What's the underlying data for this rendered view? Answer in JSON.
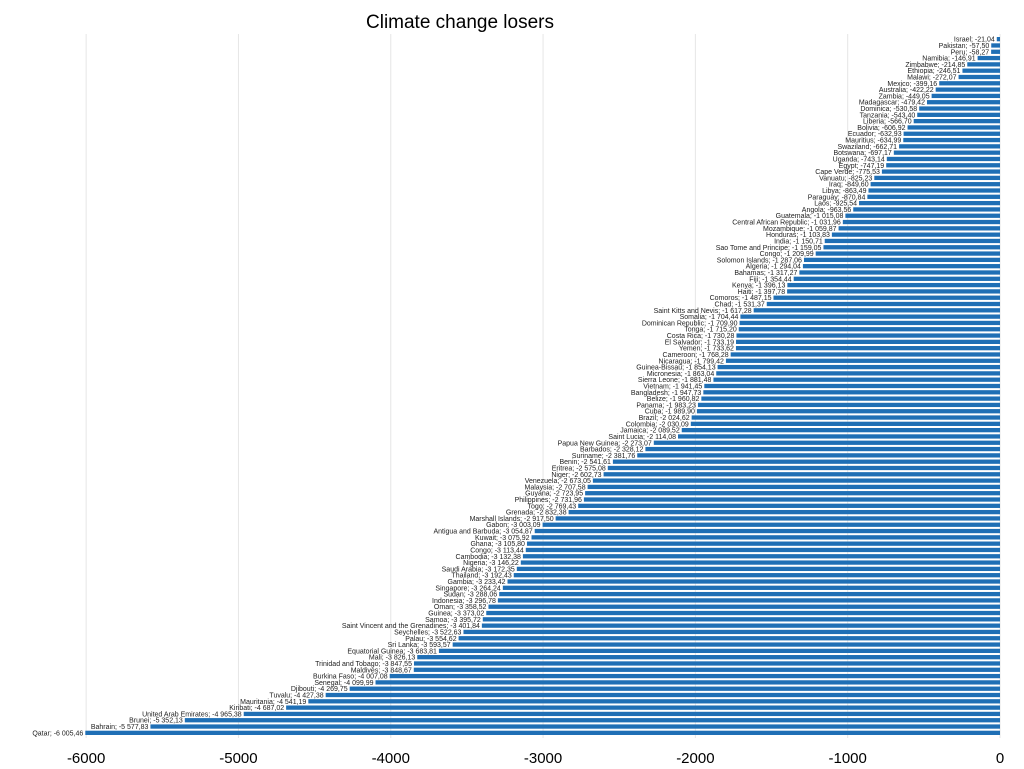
{
  "chart_data": {
    "type": "bar",
    "orientation": "horizontal",
    "title": "Climate change losers",
    "xlim": [
      -6000,
      0
    ],
    "xticks": [
      -6000,
      -5000,
      -4000,
      -3000,
      -2000,
      -1000,
      0
    ],
    "xtick_labels": [
      "-6000",
      "-5000",
      "-4000",
      "-3000",
      "-2000",
      "-1000",
      "0"
    ],
    "grid": true,
    "bar_color": "#1f6fb5",
    "bars": [
      {
        "label": "Israel; -21,04",
        "value": -21.04
      },
      {
        "label": "Pakistan; -57,50",
        "value": -57.5
      },
      {
        "label": "Peru; -58,27",
        "value": -58.27
      },
      {
        "label": "Namibia; -146,91",
        "value": -146.91
      },
      {
        "label": "Zimbabwe; -214,85",
        "value": -214.85
      },
      {
        "label": "Ethiopia; -246,51",
        "value": -246.51
      },
      {
        "label": "Malawi; -272,07",
        "value": -272.07
      },
      {
        "label": "Mexico; -399,16",
        "value": -399.16
      },
      {
        "label": "Australia; -422,22",
        "value": -422.22
      },
      {
        "label": "Zambia; -449,05",
        "value": -449.05
      },
      {
        "label": "Madagascar; -479,42",
        "value": -479.42
      },
      {
        "label": "Dominica; -530,58",
        "value": -530.58
      },
      {
        "label": "Tanzania; -543,40",
        "value": -543.4
      },
      {
        "label": "Liberia; -566,70",
        "value": -566.7
      },
      {
        "label": "Bolivia; -606,92",
        "value": -606.92
      },
      {
        "label": "Ecuador; -632,93",
        "value": -632.93
      },
      {
        "label": "Mauritius; -634,99",
        "value": -634.99
      },
      {
        "label": "Swaziland; -662,71",
        "value": -662.71
      },
      {
        "label": "Botswana; -697,17",
        "value": -697.17
      },
      {
        "label": "Uganda; -743,14",
        "value": -743.14
      },
      {
        "label": "Egypt; -747,19",
        "value": -747.19
      },
      {
        "label": "Cape Verde; -775,53",
        "value": -775.53
      },
      {
        "label": "Vanuatu; -825,23",
        "value": -825.23
      },
      {
        "label": "Iraq; -849,60",
        "value": -849.6
      },
      {
        "label": "Libya; -863,49",
        "value": -863.49
      },
      {
        "label": "Paraguay; -870,84",
        "value": -870.84
      },
      {
        "label": "Laos; -925,54",
        "value": -925.54
      },
      {
        "label": "Angola; -963,56",
        "value": -963.56
      },
      {
        "label": "Guatemala; -1 015,08",
        "value": -1015.08
      },
      {
        "label": "Central African Republic; -1 031,96",
        "value": -1031.96
      },
      {
        "label": "Mozambique; -1 059,87",
        "value": -1059.87
      },
      {
        "label": "Honduras; -1 103,83",
        "value": -1103.83
      },
      {
        "label": "India; -1 150,71",
        "value": -1150.71
      },
      {
        "label": "Sao Tome and Principe; -1 159,05",
        "value": -1159.05
      },
      {
        "label": "Congo; -1 209,99",
        "value": -1209.99
      },
      {
        "label": "Solomon Islands; -1 287,06",
        "value": -1287.06
      },
      {
        "label": "Algeria; -1 294,04",
        "value": -1294.04
      },
      {
        "label": "Bahamas; -1 317,27",
        "value": -1317.27
      },
      {
        "label": "Fiji; -1 354,44",
        "value": -1354.44
      },
      {
        "label": "Kenya; -1 396,13",
        "value": -1396.13
      },
      {
        "label": "Haiti; -1 397,78",
        "value": -1397.78
      },
      {
        "label": "Comoros; -1 487,15",
        "value": -1487.15
      },
      {
        "label": "Chad; -1 531,37",
        "value": -1531.37
      },
      {
        "label": "Saint Kitts and Nevis; -1 617,28",
        "value": -1617.28
      },
      {
        "label": "Somalia; -1 704,44",
        "value": -1704.44
      },
      {
        "label": "Dominican Republic; -1 709,90",
        "value": -1709.9
      },
      {
        "label": "Tonga; -1 715,20",
        "value": -1715.2
      },
      {
        "label": "Costa Rica; -1 730,28",
        "value": -1730.28
      },
      {
        "label": "El Salvador; -1 733,19",
        "value": -1733.19
      },
      {
        "label": "Yemen; -1 733,62",
        "value": -1733.62
      },
      {
        "label": "Cameroon; -1 768,28",
        "value": -1768.28
      },
      {
        "label": "Nicaragua; -1 799,42",
        "value": -1799.42
      },
      {
        "label": "Guinea-Bissau; -1 854,13",
        "value": -1854.13
      },
      {
        "label": "Micronesia; -1 863,04",
        "value": -1863.04
      },
      {
        "label": "Sierra Leone; -1 881,48",
        "value": -1881.48
      },
      {
        "label": "Vietnam; -1 941,45",
        "value": -1941.45
      },
      {
        "label": "Bangladesh; -1 947,73",
        "value": -1947.73
      },
      {
        "label": "Belize; -1 960,82",
        "value": -1960.82
      },
      {
        "label": "Panama; -1 983,23",
        "value": -1983.23
      },
      {
        "label": "Cuba; -1 989,90",
        "value": -1989.9
      },
      {
        "label": "Brazil; -2 024,62",
        "value": -2024.62
      },
      {
        "label": "Colombia; -2 030,09",
        "value": -2030.09
      },
      {
        "label": "Jamaica; -2 089,52",
        "value": -2089.52
      },
      {
        "label": "Saint Lucia; -2 114,08",
        "value": -2114.08
      },
      {
        "label": "Papua New Guinea; -2 273,07",
        "value": -2273.07
      },
      {
        "label": "Barbados; -2 328,12",
        "value": -2328.12
      },
      {
        "label": "Suriname; -2 381,76",
        "value": -2381.76
      },
      {
        "label": "Benin; -2 541,61",
        "value": -2541.61
      },
      {
        "label": "Eritrea; -2 575,08",
        "value": -2575.08
      },
      {
        "label": "Niger; -2 602,73",
        "value": -2602.73
      },
      {
        "label": "Venezuela; -2 673,05",
        "value": -2673.05
      },
      {
        "label": "Malaysia; -2 707,58",
        "value": -2707.58
      },
      {
        "label": "Guyana; -2 723,95",
        "value": -2723.95
      },
      {
        "label": "Philippines; -2 731,96",
        "value": -2731.96
      },
      {
        "label": "Togo; -2 769,43",
        "value": -2769.43
      },
      {
        "label": "Grenada; -2 832,38",
        "value": -2832.38
      },
      {
        "label": "Marshall Islands; -2 917,50",
        "value": -2917.5
      },
      {
        "label": "Gabon; -3 003,09",
        "value": -3003.09
      },
      {
        "label": "Antigua and Barbuda; -3 054,87",
        "value": -3054.87
      },
      {
        "label": "Kuwait; -3 075,92",
        "value": -3075.92
      },
      {
        "label": "Ghana; -3 105,80",
        "value": -3105.8
      },
      {
        "label": "Congo; -3 113,44",
        "value": -3113.44
      },
      {
        "label": "Cambodia; -3 132,38",
        "value": -3132.38
      },
      {
        "label": "Nigeria; -3 146,22",
        "value": -3146.22
      },
      {
        "label": "Saudi Arabia; -3 172,35",
        "value": -3172.35
      },
      {
        "label": "Thailand; -3 192,43",
        "value": -3192.43
      },
      {
        "label": "Gambia; -3 233,42",
        "value": -3233.42
      },
      {
        "label": "Singapore; -3 264,24",
        "value": -3264.24
      },
      {
        "label": "Sudan; -3 288,06",
        "value": -3288.06
      },
      {
        "label": "Indonesia; -3 296,78",
        "value": -3296.78
      },
      {
        "label": "Oman; -3 358,52",
        "value": -3358.52
      },
      {
        "label": "Guinea; -3 373,02",
        "value": -3373.02
      },
      {
        "label": "Samoa; -3 395,72",
        "value": -3395.72
      },
      {
        "label": "Saint Vincent and the Grenadines; -3 401,84",
        "value": -3401.84
      },
      {
        "label": "Seychelles; -3 522,63",
        "value": -3522.63
      },
      {
        "label": "Palau; -3 554,62",
        "value": -3554.62
      },
      {
        "label": "Sri Lanka; -3 593,57",
        "value": -3593.57
      },
      {
        "label": "Equatorial Guinea; -3 683,81",
        "value": -3683.81
      },
      {
        "label": "Mali; -3 826,13",
        "value": -3826.13
      },
      {
        "label": "Trinidad and Tobago; -3 847,55",
        "value": -3847.55
      },
      {
        "label": "Maldives; -3 848,67",
        "value": -3848.67
      },
      {
        "label": "Burkina Faso; -4 007,08",
        "value": -4007.08
      },
      {
        "label": "Senegal; -4 099,99",
        "value": -4099.99
      },
      {
        "label": "Djibouti; -4 269,75",
        "value": -4269.75
      },
      {
        "label": "Tuvalu; -4 427,38",
        "value": -4427.38
      },
      {
        "label": "Mauritania; -4 541,19",
        "value": -4541.19
      },
      {
        "label": "Kiribati; -4 687,02",
        "value": -4687.02
      },
      {
        "label": "United Arab Emirates; -4 965,38",
        "value": -4965.38
      },
      {
        "label": "Brunei; -5 352,13",
        "value": -5352.13
      },
      {
        "label": "Bahrain; -5 577,83",
        "value": -5577.83
      },
      {
        "label": "Qatar; -6 005,46",
        "value": -6005.46
      }
    ]
  }
}
